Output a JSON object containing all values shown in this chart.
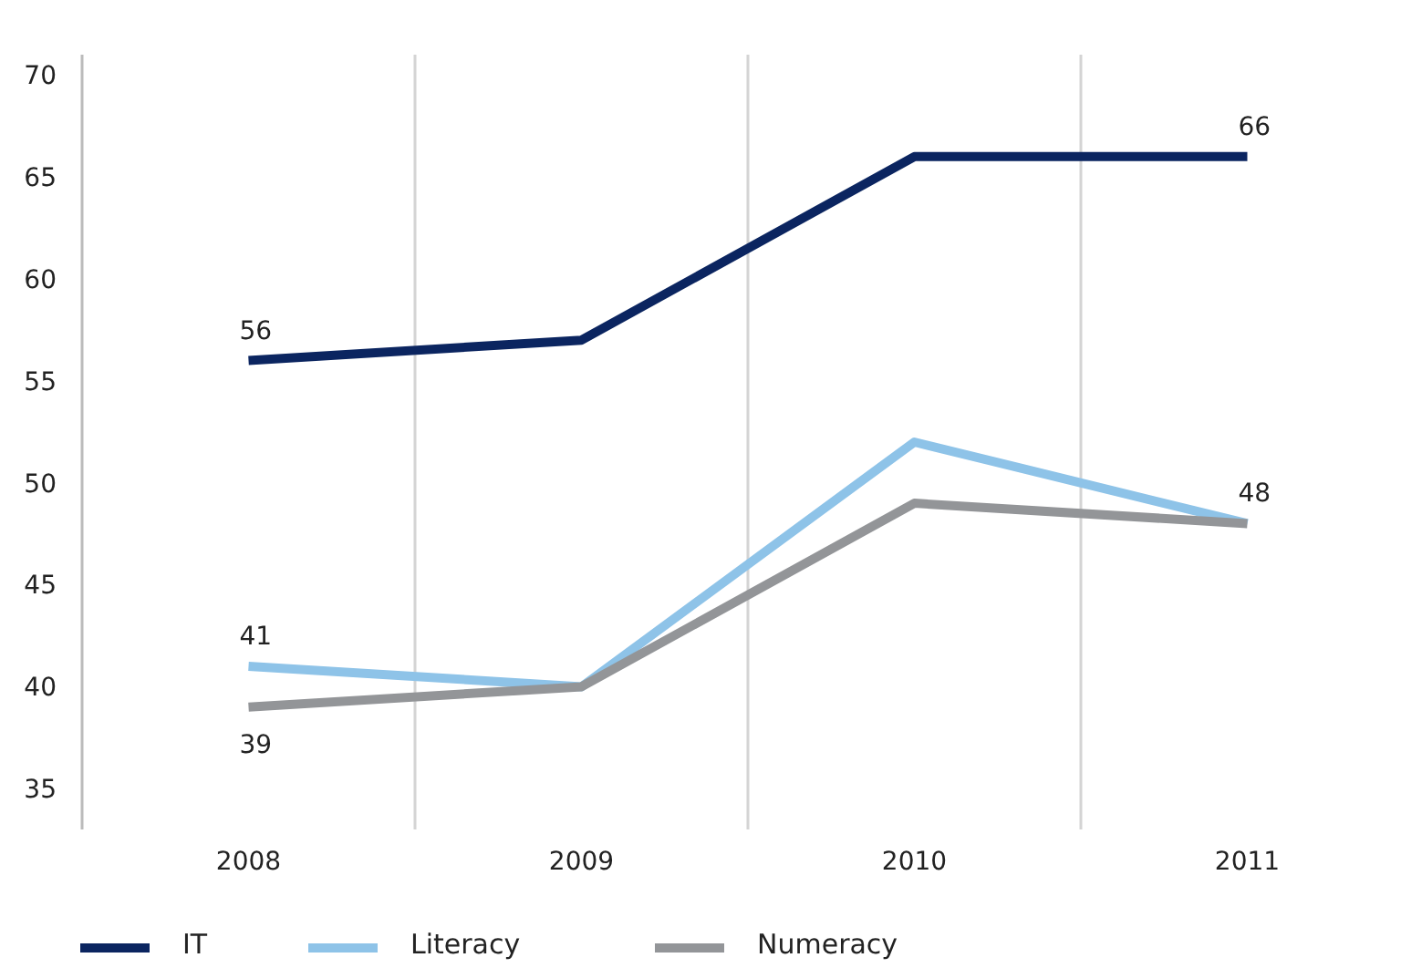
{
  "chart_data": {
    "type": "line",
    "categories": [
      "2008",
      "2009",
      "2010",
      "2011"
    ],
    "series": [
      {
        "name": "IT",
        "color": "#0b2560",
        "values": [
          56,
          57,
          66,
          66
        ],
        "value_labels": [
          "56",
          null,
          null,
          "66"
        ]
      },
      {
        "name": "Literacy",
        "color": "#8ec3e8",
        "values": [
          41,
          40,
          52,
          48
        ],
        "value_labels": [
          "41",
          null,
          null,
          "48"
        ]
      },
      {
        "name": "Numeracy",
        "color": "#939598",
        "values": [
          39,
          40,
          49,
          48
        ],
        "value_labels": [
          "39",
          null,
          null,
          null
        ]
      }
    ],
    "ylim": [
      33,
      71
    ],
    "yticks": [
      35,
      40,
      45,
      50,
      55,
      60,
      65,
      70
    ],
    "grid": "x",
    "legend": "bottom",
    "marker": "none",
    "line_style": "solid"
  }
}
